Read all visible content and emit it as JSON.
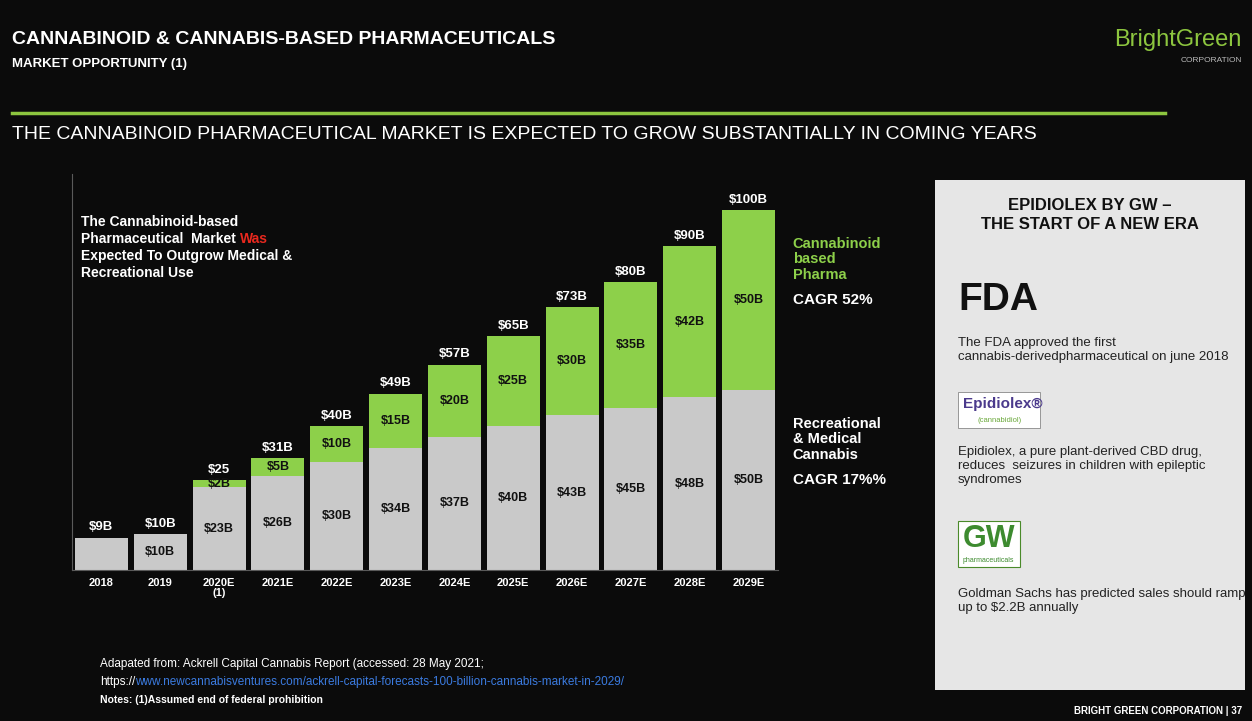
{
  "slide": {
    "logo": "BrightGreen",
    "logo_sub": "CORPORATION",
    "title": "CANNABINOID & CANNABIS-BASED PHARMACEUTICALS",
    "subtitle": "MARKET OPPORTUNITY (1)",
    "headline": "THE CANNABINOID PHARMACEUTICAL MARKET IS EXPECTED TO GROW SUBSTANTIALLY IN COMING YEARS",
    "note_lines": [
      [
        {
          "text": "The Cannabinoid-based",
          "color": "#ffffff"
        }
      ],
      [
        {
          "text": "Pharmaceutical  Market",
          "color": "#ffffff"
        },
        {
          "text": "Was",
          "color": "#e8281e"
        }
      ],
      [
        {
          "text": "Expected To Outgrow Medical &",
          "color": "#ffffff"
        }
      ],
      [
        {
          "text": "Recreational Use",
          "color": "#ffffff"
        }
      ]
    ],
    "source": "Adapated from: Ackrell Capital Cannabis Report (accessed: 28 May 2021;",
    "source_url_prefix": "https://",
    "source_url": "www.newcannabisventures.com/ackrell-capital-forecasts-100-billion-cannabis-market-in-2029/",
    "notes": "Notes: (1)Assumed end of federal prohibition",
    "footer": "BRIGHT GREEN CORPORATION | 37",
    "panel": {
      "title": "EPIDIOLEX BY GW –\nTHE START OF A NEW ERA",
      "fda_logo": "FDA",
      "fda_text": "The FDA approved the first cannabis-derivedpharmaceutical on june 2018",
      "epidiolex_logo": "Epidiolex®",
      "epidiolex_logo_sub": "(cannabidiol)",
      "epidiolex_text": "Epidiolex, a pure plant-derived CBD drug, reduces  seizures in children with epileptic syndromes",
      "gw_logo": "GW",
      "gw_logo_sub": "pharmaceuticals",
      "gs_text": "Goldman Sachs has predicted sales should ramp up to $2.2B annually"
    }
  },
  "chart_data": {
    "type": "bar",
    "stacked": true,
    "data_labels": true,
    "tick_labels": "x",
    "categories": [
      "2018",
      "2019",
      "2020E\n(1)",
      "2021E",
      "2022E",
      "2023E",
      "2024E",
      "2025E",
      "2026E",
      "2027E",
      "2028E",
      "2029E"
    ],
    "ylim": [
      0,
      110
    ],
    "yticks": [],
    "series": [
      {
        "name": "Recreational\n& Medical\nCannabis",
        "color": "#c9c9c9",
        "values": [
          9,
          10,
          23,
          26,
          30,
          34,
          37,
          40,
          43,
          45,
          48,
          50
        ],
        "value_labels": [
          null,
          "$10B",
          "$23B",
          "$26B",
          "$30B",
          "$34B",
          "$37B",
          "$40B",
          "$43B",
          "$45B",
          "$48B",
          "$50B"
        ],
        "cagr_label": "CAGR 17%%"
      },
      {
        "name": "Cannabinoid\nbased\nPharma",
        "color": "#8dd04a",
        "values": [
          0,
          0,
          2,
          5,
          10,
          15,
          20,
          25,
          30,
          35,
          42,
          50
        ],
        "value_labels": [
          null,
          null,
          "$2B",
          "$5B",
          "$10B",
          "$15B",
          "$20B",
          "$25B",
          "$30B",
          "$35B",
          "$42B",
          "$50B"
        ],
        "cagr_label": "CAGR 52%"
      }
    ],
    "total_labels": [
      "$9B",
      "$10B",
      "$25",
      "$31B",
      "$40B",
      "$49B",
      "$57B",
      "$65B",
      "$73B",
      "$80B",
      "$90B",
      "$100B"
    ]
  }
}
